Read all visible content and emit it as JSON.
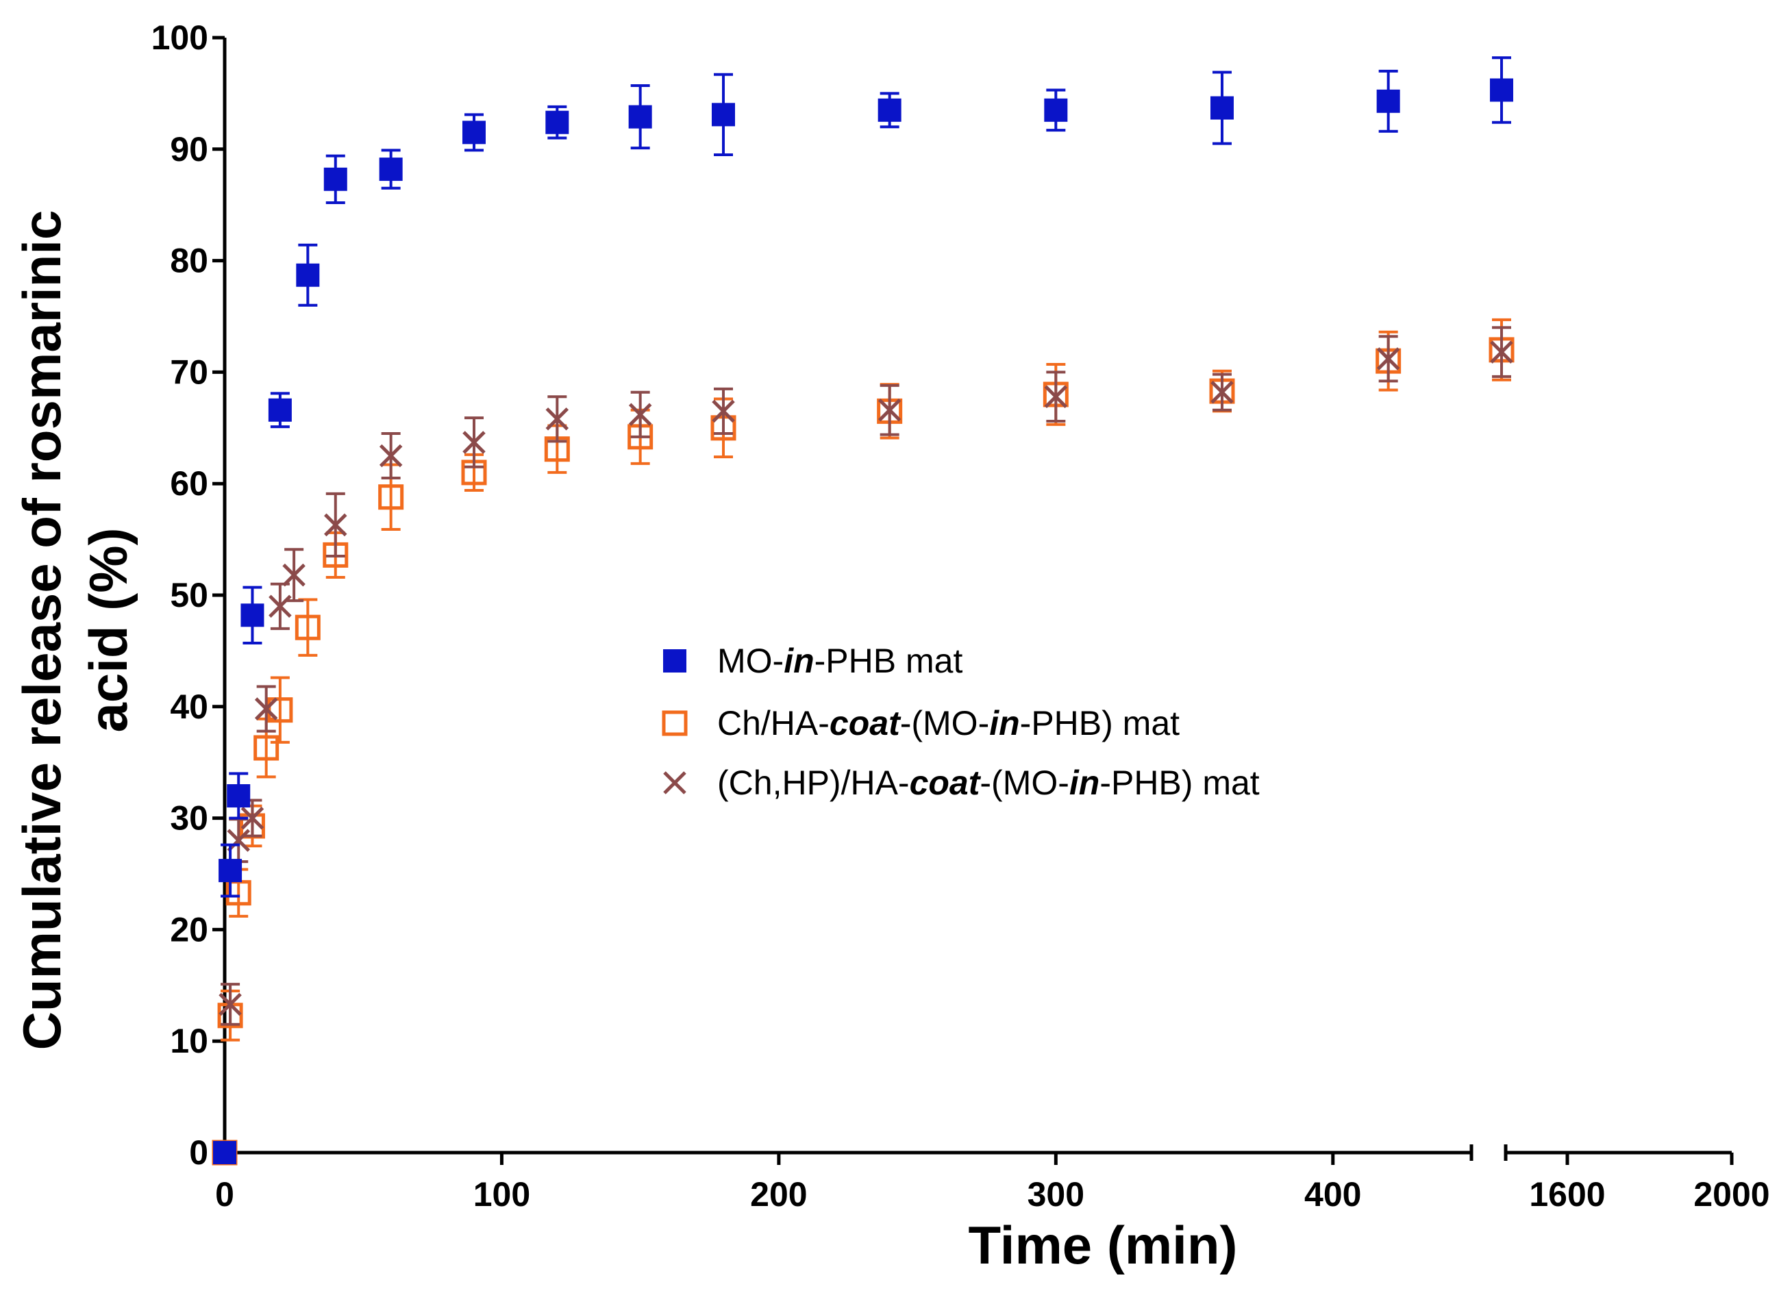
{
  "chart_data": {
    "type": "scatter",
    "xlabel": "Time (min)",
    "ylabel_lines": [
      "Cumulative release of rosmarinic",
      "acid (%)"
    ],
    "ylim": [
      0,
      100
    ],
    "y_ticks": [
      0,
      10,
      20,
      30,
      40,
      50,
      60,
      70,
      80,
      90,
      100
    ],
    "x_segments": [
      {
        "range": [
          0,
          450
        ],
        "ticks": [
          0,
          100,
          200,
          300,
          400
        ]
      },
      {
        "range": [
          1450,
          2000
        ],
        "ticks": [
          1600,
          2000
        ]
      }
    ],
    "axis_break": "between 450 and 1450 min",
    "legend_position": "center",
    "series": [
      {
        "name": "MO-in-PHB mat",
        "name_parts": [
          {
            "text": "MO-",
            "italic": false
          },
          {
            "text": "in",
            "italic": true
          },
          {
            "text": "-PHB mat",
            "italic": false
          }
        ],
        "color": "#0A14C8",
        "marker": "filled-square",
        "points": [
          {
            "x": 0,
            "y": 0,
            "err": 0
          },
          {
            "x": 2,
            "y": 25.3,
            "err": 2.3
          },
          {
            "x": 5,
            "y": 32,
            "err": 2
          },
          {
            "x": 10,
            "y": 48.2,
            "err": 2.5
          },
          {
            "x": 20,
            "y": 66.6,
            "err": 1.5
          },
          {
            "x": 30,
            "y": 78.7,
            "err": 2.7
          },
          {
            "x": 40,
            "y": 87.3,
            "err": 2.1
          },
          {
            "x": 60,
            "y": 88.2,
            "err": 1.7
          },
          {
            "x": 90,
            "y": 91.5,
            "err": 1.6
          },
          {
            "x": 120,
            "y": 92.4,
            "err": 1.4
          },
          {
            "x": 150,
            "y": 92.9,
            "err": 2.8
          },
          {
            "x": 180,
            "y": 93.1,
            "err": 3.6
          },
          {
            "x": 240,
            "y": 93.5,
            "err": 1.5
          },
          {
            "x": 300,
            "y": 93.5,
            "err": 1.8
          },
          {
            "x": 360,
            "y": 93.7,
            "err": 3.2
          },
          {
            "x": 420,
            "y": 94.3,
            "err": 2.7
          },
          {
            "x": 1440,
            "y": 95.3,
            "err": 2.9
          }
        ]
      },
      {
        "name": "Ch/HA-coat-(MO-in-PHB) mat",
        "name_parts": [
          {
            "text": "Ch/HA-",
            "italic": false
          },
          {
            "text": "coat",
            "italic": true
          },
          {
            "text": "-(MO-",
            "italic": false
          },
          {
            "text": "in",
            "italic": true
          },
          {
            "text": "-PHB) mat",
            "italic": false
          }
        ],
        "color": "#F26B1D",
        "marker": "open-square",
        "points": [
          {
            "x": 0,
            "y": 0,
            "err": 0
          },
          {
            "x": 2,
            "y": 12.3,
            "err": 2.2
          },
          {
            "x": 5,
            "y": 23.3,
            "err": 2.1
          },
          {
            "x": 10,
            "y": 29.3,
            "err": 1.8
          },
          {
            "x": 15,
            "y": 36.3,
            "err": 2.6
          },
          {
            "x": 20,
            "y": 39.7,
            "err": 2.9
          },
          {
            "x": 30,
            "y": 47.1,
            "err": 2.5
          },
          {
            "x": 40,
            "y": 53.6,
            "err": 2
          },
          {
            "x": 60,
            "y": 58.8,
            "err": 2.9
          },
          {
            "x": 90,
            "y": 61,
            "err": 1.6
          },
          {
            "x": 120,
            "y": 63.1,
            "err": 2.1
          },
          {
            "x": 150,
            "y": 64.2,
            "err": 2.4
          },
          {
            "x": 180,
            "y": 65,
            "err": 2.6
          },
          {
            "x": 240,
            "y": 66.5,
            "err": 2.4
          },
          {
            "x": 300,
            "y": 68,
            "err": 2.7
          },
          {
            "x": 360,
            "y": 68.3,
            "err": 1.8
          },
          {
            "x": 420,
            "y": 71,
            "err": 2.6
          },
          {
            "x": 1440,
            "y": 72,
            "err": 2.7
          }
        ]
      },
      {
        "name": "(Ch,HP)/HA-coat-(MO-in-PHB) mat",
        "name_parts": [
          {
            "text": "(Ch,HP)/HA-",
            "italic": false
          },
          {
            "text": "coat",
            "italic": true
          },
          {
            "text": "-(MO-",
            "italic": false
          },
          {
            "text": "in",
            "italic": true
          },
          {
            "text": "-PHB) mat",
            "italic": false
          }
        ],
        "color": "#8B4A4A",
        "marker": "x",
        "points": [
          {
            "x": 0,
            "y": 0,
            "err": 0
          },
          {
            "x": 2,
            "y": 13.3,
            "err": 1.8
          },
          {
            "x": 5,
            "y": 28,
            "err": 1.9
          },
          {
            "x": 10,
            "y": 30,
            "err": 1.6
          },
          {
            "x": 15,
            "y": 39.8,
            "err": 2
          },
          {
            "x": 20,
            "y": 49,
            "err": 2
          },
          {
            "x": 25,
            "y": 51.8,
            "err": 2.3
          },
          {
            "x": 40,
            "y": 56.3,
            "err": 2.8
          },
          {
            "x": 60,
            "y": 62.5,
            "err": 2
          },
          {
            "x": 90,
            "y": 63.7,
            "err": 2.2
          },
          {
            "x": 120,
            "y": 65.8,
            "err": 2
          },
          {
            "x": 150,
            "y": 66.2,
            "err": 2
          },
          {
            "x": 180,
            "y": 66.5,
            "err": 2
          },
          {
            "x": 240,
            "y": 66.6,
            "err": 2.2
          },
          {
            "x": 300,
            "y": 67.8,
            "err": 2.2
          },
          {
            "x": 360,
            "y": 68.2,
            "err": 1.6
          },
          {
            "x": 420,
            "y": 71.2,
            "err": 2
          },
          {
            "x": 1440,
            "y": 71.8,
            "err": 2.2
          }
        ]
      }
    ]
  }
}
